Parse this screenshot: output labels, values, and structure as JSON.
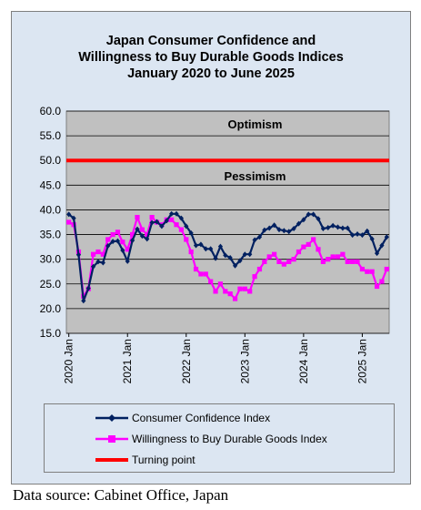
{
  "chart_data": {
    "type": "line",
    "title_lines": [
      "Japan Consumer Confidence and",
      "Willingness to Buy Durable Goods Indices",
      "January 2020 to June 2025"
    ],
    "xlabel": "",
    "ylabel": "",
    "ylim": [
      15.0,
      60.0
    ],
    "y_ticks": [
      "15.0",
      "20.0",
      "25.0",
      "30.0",
      "35.0",
      "40.0",
      "45.0",
      "50.0",
      "55.0",
      "60.0"
    ],
    "x_ticks": [
      "2020 Jan",
      "2021 Jan",
      "2022 Jan",
      "2023 Jan",
      "2024 Jan",
      "2025 Jan"
    ],
    "x_start": "2020 Jan",
    "x_end": "2025 Jun",
    "grid": true,
    "legend_position": "bottom",
    "annotations": [
      {
        "text": "Optimism",
        "y": 56.5
      },
      {
        "text": "Pessimism",
        "y": 46.0
      }
    ],
    "series": [
      {
        "name": "Consumer Confidence Index",
        "color": "#002060",
        "marker": "diamond",
        "values": [
          39.1,
          38.3,
          30.9,
          21.6,
          24.1,
          28.5,
          29.5,
          29.3,
          32.7,
          33.6,
          33.7,
          31.8,
          29.6,
          33.8,
          36.1,
          34.7,
          34.1,
          37.4,
          37.6,
          36.7,
          37.8,
          39.2,
          39.2,
          38.3,
          36.7,
          35.3,
          32.8,
          33.0,
          32.1,
          32.1,
          30.2,
          32.6,
          30.8,
          30.3,
          28.7,
          29.7,
          31.0,
          31.0,
          33.9,
          34.5,
          35.9,
          36.3,
          36.9,
          36.0,
          35.8,
          35.6,
          36.2,
          37.2,
          38.0,
          39.1,
          39.1,
          38.2,
          36.2,
          36.4,
          36.8,
          36.5,
          36.3,
          36.3,
          34.9,
          35.1,
          34.9,
          35.7,
          34.1,
          31.2,
          32.8,
          34.5
        ]
      },
      {
        "name": "Willingness to Buy Durable Goods Index",
        "color": "#ff00ff",
        "marker": "square",
        "values": [
          37.5,
          37.0,
          31.5,
          22.5,
          24.0,
          31.0,
          31.5,
          31.0,
          34.0,
          35.0,
          35.5,
          33.5,
          32.0,
          35.0,
          38.5,
          36.0,
          35.0,
          38.5,
          37.5,
          37.0,
          38.0,
          38.0,
          37.0,
          36.0,
          34.0,
          31.5,
          28.0,
          27.0,
          27.0,
          25.5,
          23.5,
          25.0,
          23.5,
          23.0,
          22.0,
          24.0,
          24.0,
          23.5,
          26.5,
          28.0,
          29.5,
          30.5,
          31.0,
          29.5,
          29.0,
          29.5,
          30.0,
          31.5,
          32.5,
          33.0,
          34.0,
          32.0,
          29.5,
          30.0,
          30.5,
          30.5,
          31.0,
          29.5,
          29.5,
          29.5,
          28.0,
          27.5,
          27.5,
          24.5,
          25.5,
          28.0
        ]
      },
      {
        "name": "Turning point",
        "color": "#ff0000",
        "marker": "none",
        "constant": 50.0
      }
    ]
  },
  "source": "Data source: Cabinet Office, Japan"
}
